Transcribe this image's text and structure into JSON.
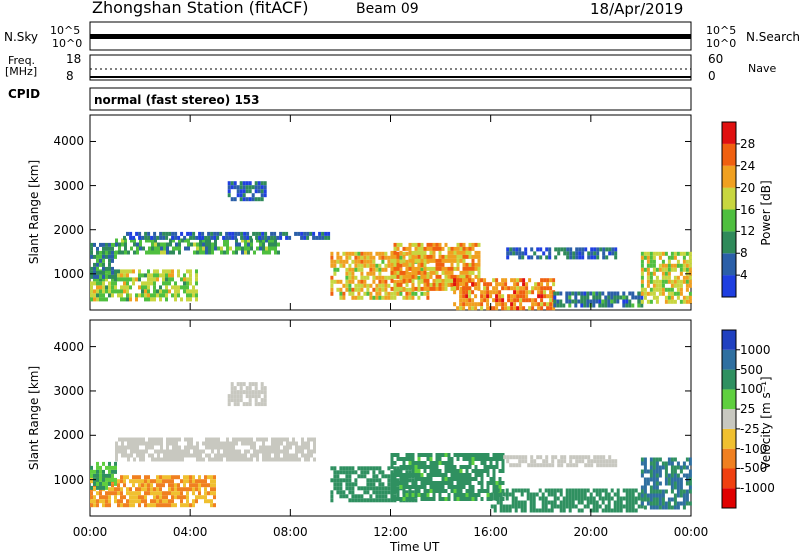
{
  "header": {
    "station": "Zhongshan Station (fitACF)",
    "beam": "Beam 09",
    "date": "18/Apr/2019"
  },
  "top_panels": {
    "nsky_label": "N.Sky",
    "nsearch_label": "N.Search",
    "nsky_ticks": [
      "10^5",
      "10^0"
    ],
    "nsearch_ticks": [
      "10^5",
      "10^0"
    ],
    "freq_label_line1": "Freq.",
    "freq_label_line2": "[MHz]",
    "freq_ticks": [
      "18",
      "8"
    ],
    "nave_label": "Nave",
    "nave_ticks": [
      "60",
      "0"
    ],
    "cpid_label": "CPID",
    "cpid_text": "normal (fast stereo) 153"
  },
  "chart_data": [
    {
      "type": "heatmap",
      "title": "",
      "xlabel": "Time UT",
      "ylabel": "Slant Range [km]",
      "x_ticks": [
        "00:00",
        "04:00",
        "08:00",
        "12:00",
        "16:00",
        "20:00",
        "00:00"
      ],
      "y_ticks": [
        1000,
        2000,
        3000,
        4000
      ],
      "ylim": [
        180,
        4600
      ],
      "colorbar": {
        "label": "Power [dB]",
        "ticks": [
          "4",
          "8",
          "12",
          "16",
          "20",
          "24",
          "28"
        ],
        "colors": [
          "#1f3fe0",
          "#2b5fa8",
          "#2f8a5a",
          "#4fbf3f",
          "#c8d640",
          "#f0a020",
          "#f06010",
          "#e01010"
        ]
      },
      "regions": [
        {
          "t": [
            0.0,
            4.3
          ],
          "r": [
            400,
            1100
          ],
          "value": 16
        },
        {
          "t": [
            0.0,
            1.0
          ],
          "r": [
            900,
            1700
          ],
          "value": 10
        },
        {
          "t": [
            1.0,
            7.5
          ],
          "r": [
            1450,
            1800
          ],
          "value": 12
        },
        {
          "t": [
            1.2,
            9.5
          ],
          "r": [
            1800,
            1950
          ],
          "value": 6
        },
        {
          "t": [
            5.5,
            7.0
          ],
          "r": [
            2700,
            3100
          ],
          "value": 6
        },
        {
          "t": [
            9.6,
            13.5
          ],
          "r": [
            500,
            1500
          ],
          "value": 20
        },
        {
          "t": [
            12.0,
            15.5
          ],
          "r": [
            700,
            1700
          ],
          "value": 22
        },
        {
          "t": [
            14.5,
            18.5
          ],
          "r": [
            250,
            900
          ],
          "value": 24
        },
        {
          "t": [
            16.5,
            21.0
          ],
          "r": [
            1400,
            1600
          ],
          "value": 6
        },
        {
          "t": [
            18.5,
            22.0
          ],
          "r": [
            300,
            600
          ],
          "value": 8
        },
        {
          "t": [
            22.0,
            24.0
          ],
          "r": [
            400,
            1500
          ],
          "value": 18
        }
      ]
    },
    {
      "type": "heatmap",
      "title": "",
      "xlabel": "Time UT",
      "ylabel": "Slant Range [km]",
      "x_ticks": [
        "00:00",
        "04:00",
        "08:00",
        "12:00",
        "16:00",
        "20:00",
        "00:00"
      ],
      "y_ticks": [
        1000,
        2000,
        3000,
        4000
      ],
      "ylim": [
        180,
        4600
      ],
      "colorbar": {
        "label": "Velocity [m s⁻¹]",
        "ticks": [
          "1000",
          "500",
          "100",
          "25",
          "-25",
          "-100",
          "-500",
          "-1000"
        ],
        "colors": [
          "#2040c0",
          "#2f6fa0",
          "#2f9060",
          "#5fcf3f",
          "#c8c8c0",
          "#f0c030",
          "#f08020",
          "#f04010",
          "#e00000"
        ]
      },
      "regions": [
        {
          "t": [
            0.0,
            5.0
          ],
          "r": [
            400,
            1100
          ],
          "value": -100
        },
        {
          "t": [
            0.0,
            1.0
          ],
          "r": [
            800,
            1400
          ],
          "value": 100
        },
        {
          "t": [
            1.0,
            9.0
          ],
          "r": [
            1450,
            1950
          ],
          "value": 0
        },
        {
          "t": [
            5.5,
            7.0
          ],
          "r": [
            2700,
            3200
          ],
          "value": 0
        },
        {
          "t": [
            9.6,
            13.0
          ],
          "r": [
            500,
            1300
          ],
          "value": 300
        },
        {
          "t": [
            12.0,
            16.5
          ],
          "r": [
            600,
            1600
          ],
          "value": 150
        },
        {
          "t": [
            16.0,
            22.0
          ],
          "r": [
            300,
            800
          ],
          "value": 300
        },
        {
          "t": [
            16.5,
            21.0
          ],
          "r": [
            1350,
            1550
          ],
          "value": 0
        },
        {
          "t": [
            22.0,
            24.0
          ],
          "r": [
            400,
            1500
          ],
          "value": 500
        }
      ]
    }
  ]
}
